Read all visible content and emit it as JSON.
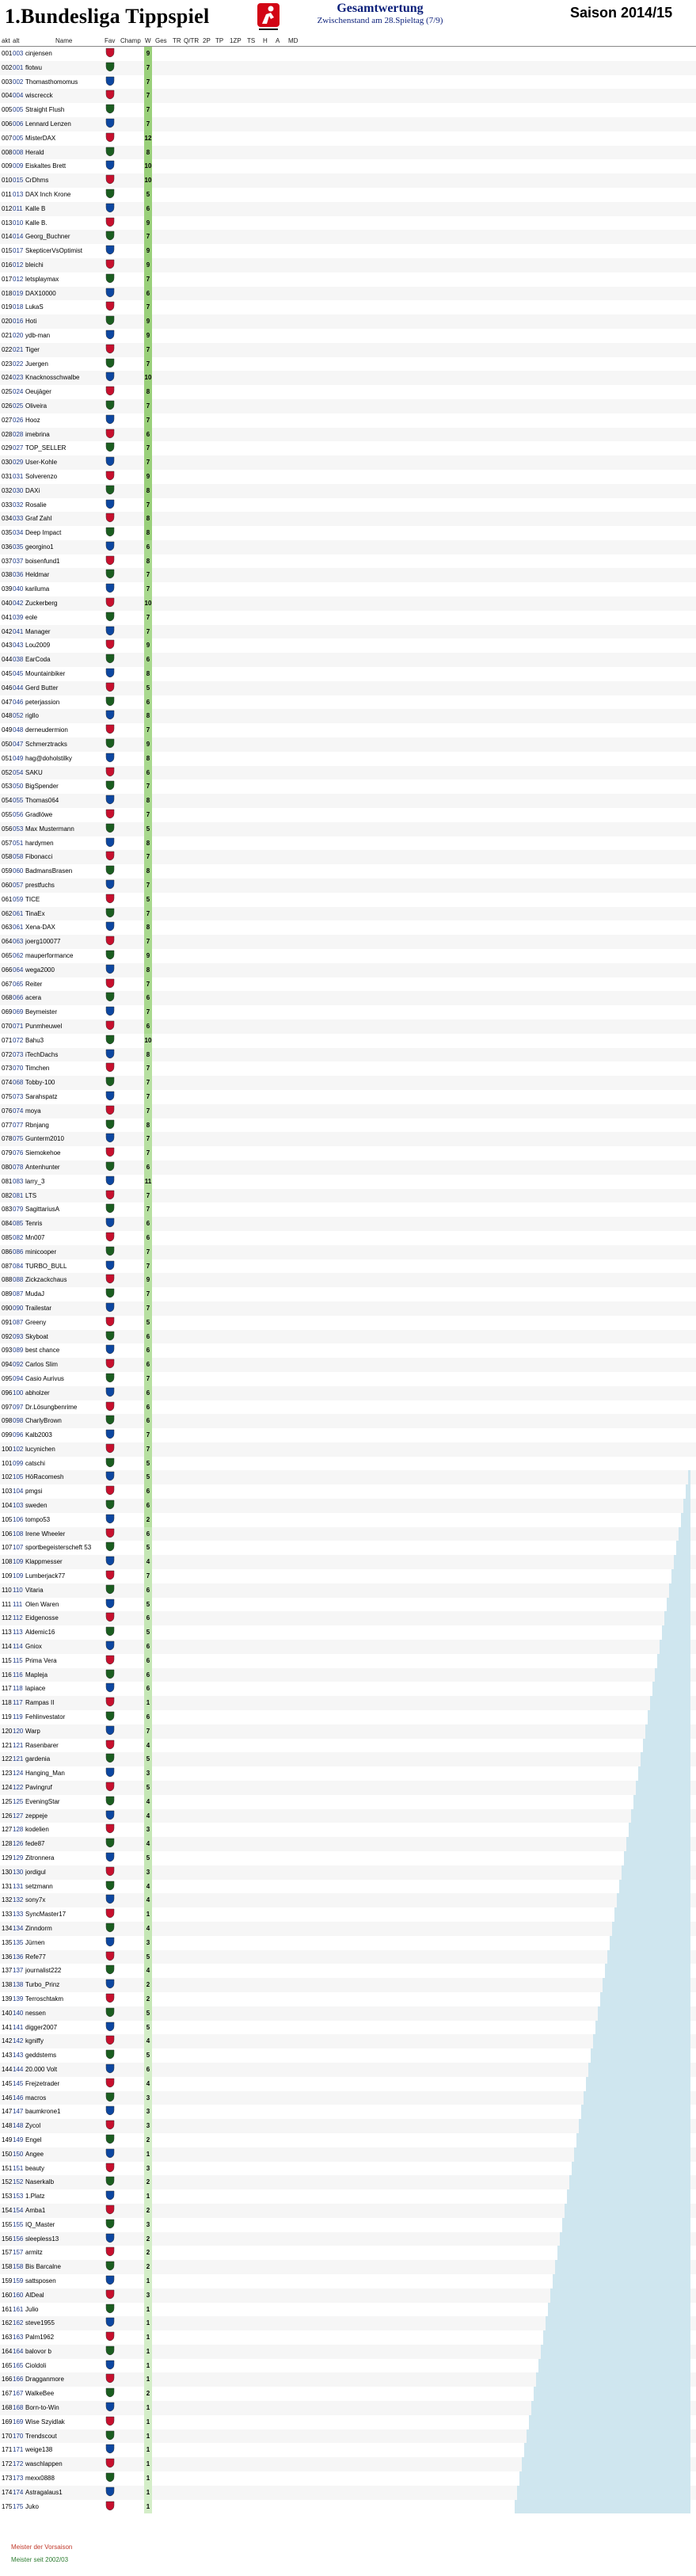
{
  "header": {
    "title": "1.Bundesliga Tippspiel",
    "subtitle": "Gesamtwertung",
    "info": "Zwischenstand am 28.Spieltag (7/9)",
    "season": "Saison 2014/15"
  },
  "columns": {
    "akt": "akt",
    "alt": "alt",
    "name": "Name",
    "fav": "Fav",
    "champ": "Champ",
    "w": "W",
    "ges": "Ges",
    "tr": "TR",
    "qtr": "Q/TR",
    "p2": "2P",
    "tp": "TP",
    "p1z": "1ZP",
    "ts": "TS",
    "h": "H",
    "a": "A",
    "md": "MD"
  },
  "rows": [
    {
      "akt": "001",
      "alt": "003",
      "name": "cinjensen",
      "w": "9"
    },
    {
      "akt": "002",
      "alt": "001",
      "name": "flotwu",
      "w": "7"
    },
    {
      "akt": "003",
      "alt": "002",
      "name": "Thomasthomomus",
      "w": "7"
    },
    {
      "akt": "004",
      "alt": "004",
      "name": "wiscrecck",
      "w": "7"
    },
    {
      "akt": "005",
      "alt": "005",
      "name": "Straight Flush",
      "w": "7"
    },
    {
      "akt": "006",
      "alt": "006",
      "name": "Lennard Lenzen",
      "w": "7"
    },
    {
      "akt": "007",
      "alt": "005",
      "name": "MisterDAX",
      "w": "12"
    },
    {
      "akt": "008",
      "alt": "008",
      "name": "Herald",
      "w": "8"
    },
    {
      "akt": "009",
      "alt": "009",
      "name": "Eiskaltes Brett",
      "w": "10"
    },
    {
      "akt": "010",
      "alt": "015",
      "name": "CrDhms",
      "w": "10"
    },
    {
      "akt": "011",
      "alt": "013",
      "name": "DAX Inch Krone",
      "w": "5"
    },
    {
      "akt": "012",
      "alt": "011",
      "name": "Kalle B",
      "w": "6"
    },
    {
      "akt": "013",
      "alt": "010",
      "name": "Kalle B.",
      "w": "9"
    },
    {
      "akt": "014",
      "alt": "014",
      "name": "Georg_Buchner",
      "w": "7"
    },
    {
      "akt": "015",
      "alt": "017",
      "name": "SkepticerVsOptimist",
      "w": "9"
    },
    {
      "akt": "016",
      "alt": "012",
      "name": "bleichi",
      "w": "9"
    },
    {
      "akt": "017",
      "alt": "012",
      "name": "letsplaymax",
      "w": "7"
    },
    {
      "akt": "018",
      "alt": "019",
      "name": "DAX10000",
      "w": "6"
    },
    {
      "akt": "019",
      "alt": "018",
      "name": "LukaS",
      "w": "7"
    },
    {
      "akt": "020",
      "alt": "016",
      "name": "Hoti",
      "w": "9"
    },
    {
      "akt": "021",
      "alt": "020",
      "name": "ydb-man",
      "w": "9"
    },
    {
      "akt": "022",
      "alt": "021",
      "name": "Tiger",
      "w": "7"
    },
    {
      "akt": "023",
      "alt": "022",
      "name": "Juergen",
      "w": "7"
    },
    {
      "akt": "024",
      "alt": "023",
      "name": "Knacknosschwalbe",
      "w": "10"
    },
    {
      "akt": "025",
      "alt": "024",
      "name": "Oeujäger",
      "w": "8"
    },
    {
      "akt": "026",
      "alt": "025",
      "name": "Oliveira",
      "w": "7"
    },
    {
      "akt": "027",
      "alt": "026",
      "name": "Hooz",
      "w": "7"
    },
    {
      "akt": "028",
      "alt": "028",
      "name": "imebrina",
      "w": "6"
    },
    {
      "akt": "029",
      "alt": "027",
      "name": "TOP_SELLER",
      "w": "7"
    },
    {
      "akt": "030",
      "alt": "029",
      "name": "User-Kohle",
      "w": "7"
    },
    {
      "akt": "031",
      "alt": "031",
      "name": "Solverenzo",
      "w": "9"
    },
    {
      "akt": "032",
      "alt": "030",
      "name": "DAXi",
      "w": "8"
    },
    {
      "akt": "033",
      "alt": "032",
      "name": "Rosalie",
      "w": "7"
    },
    {
      "akt": "034",
      "alt": "033",
      "name": "Graf Zahl",
      "w": "8"
    },
    {
      "akt": "035",
      "alt": "034",
      "name": "Deep Impact",
      "w": "8"
    },
    {
      "akt": "036",
      "alt": "035",
      "name": "georgino1",
      "w": "6"
    },
    {
      "akt": "037",
      "alt": "037",
      "name": "boisenfund1",
      "w": "8"
    },
    {
      "akt": "038",
      "alt": "036",
      "name": "Heldmar",
      "w": "7"
    },
    {
      "akt": "039",
      "alt": "040",
      "name": "kariluma",
      "w": "7"
    },
    {
      "akt": "040",
      "alt": "042",
      "name": "Zuckerberg",
      "w": "10"
    },
    {
      "akt": "041",
      "alt": "039",
      "name": "eole",
      "w": "7"
    },
    {
      "akt": "042",
      "alt": "041",
      "name": "Manager",
      "w": "7"
    },
    {
      "akt": "043",
      "alt": "043",
      "name": "Lou2009",
      "w": "9"
    },
    {
      "akt": "044",
      "alt": "038",
      "name": "EarCoda",
      "w": "6"
    },
    {
      "akt": "045",
      "alt": "045",
      "name": "Mountainbiker",
      "w": "8"
    },
    {
      "akt": "046",
      "alt": "044",
      "name": "Gerd Butter",
      "w": "5"
    },
    {
      "akt": "047",
      "alt": "046",
      "name": "peterjassion",
      "w": "6"
    },
    {
      "akt": "048",
      "alt": "052",
      "name": "rigllo",
      "w": "8"
    },
    {
      "akt": "049",
      "alt": "048",
      "name": "derneudermion",
      "w": "7"
    },
    {
      "akt": "050",
      "alt": "047",
      "name": "Schmerztracks",
      "w": "9"
    },
    {
      "akt": "051",
      "alt": "049",
      "name": "hag@doholstilky",
      "w": "8"
    },
    {
      "akt": "052",
      "alt": "054",
      "name": "SAKU",
      "w": "6"
    },
    {
      "akt": "053",
      "alt": "050",
      "name": "BigSpender",
      "w": "7"
    },
    {
      "akt": "054",
      "alt": "055",
      "name": "Thomas064",
      "w": "8"
    },
    {
      "akt": "055",
      "alt": "056",
      "name": "Gradlöwe",
      "w": "7"
    },
    {
      "akt": "056",
      "alt": "053",
      "name": "Max Mustermann",
      "w": "5"
    },
    {
      "akt": "057",
      "alt": "051",
      "name": "hardymen",
      "w": "8"
    },
    {
      "akt": "058",
      "alt": "058",
      "name": "Fibonacci",
      "w": "7"
    },
    {
      "akt": "059",
      "alt": "060",
      "name": "BadmansBrasen",
      "w": "8"
    },
    {
      "akt": "060",
      "alt": "057",
      "name": "prestfuchs",
      "w": "7"
    },
    {
      "akt": "061",
      "alt": "059",
      "name": "TICE",
      "w": "5"
    },
    {
      "akt": "062",
      "alt": "061",
      "name": "TinaEx",
      "w": "7"
    },
    {
      "akt": "063",
      "alt": "061",
      "name": "Xena-DAX",
      "w": "8"
    },
    {
      "akt": "064",
      "alt": "063",
      "name": "joerg100077",
      "w": "7"
    },
    {
      "akt": "065",
      "alt": "062",
      "name": "mauperformance",
      "w": "9"
    },
    {
      "akt": "066",
      "alt": "064",
      "name": "wega2000",
      "w": "8"
    },
    {
      "akt": "067",
      "alt": "065",
      "name": "Reiter",
      "w": "7"
    },
    {
      "akt": "068",
      "alt": "066",
      "name": "acera",
      "w": "6"
    },
    {
      "akt": "069",
      "alt": "069",
      "name": "Beymeister",
      "w": "7"
    },
    {
      "akt": "070",
      "alt": "071",
      "name": "Punmheuwel",
      "w": "6"
    },
    {
      "akt": "071",
      "alt": "072",
      "name": "Bahu3",
      "w": "10"
    },
    {
      "akt": "072",
      "alt": "073",
      "name": "iTechDachs",
      "w": "8"
    },
    {
      "akt": "073",
      "alt": "070",
      "name": "Timchen",
      "w": "7"
    },
    {
      "akt": "074",
      "alt": "068",
      "name": "Tobby-100",
      "w": "7"
    },
    {
      "akt": "075",
      "alt": "073",
      "name": "Sarahspatz",
      "w": "7"
    },
    {
      "akt": "076",
      "alt": "074",
      "name": "moya",
      "w": "7"
    },
    {
      "akt": "077",
      "alt": "077",
      "name": "Rbnjang",
      "w": "8"
    },
    {
      "akt": "078",
      "alt": "075",
      "name": "Gunterm2010",
      "w": "7"
    },
    {
      "akt": "079",
      "alt": "076",
      "name": "Siemokehoe",
      "w": "7"
    },
    {
      "akt": "080",
      "alt": "078",
      "name": "Antenhunter",
      "w": "6"
    },
    {
      "akt": "081",
      "alt": "083",
      "name": "larry_3",
      "w": "11"
    },
    {
      "akt": "082",
      "alt": "081",
      "name": "LTS",
      "w": "7"
    },
    {
      "akt": "083",
      "alt": "079",
      "name": "SagittariusA",
      "w": "7"
    },
    {
      "akt": "084",
      "alt": "085",
      "name": "Tenris",
      "w": "6"
    },
    {
      "akt": "085",
      "alt": "082",
      "name": "Mn007",
      "w": "6"
    },
    {
      "akt": "086",
      "alt": "086",
      "name": "minicooper",
      "w": "7"
    },
    {
      "akt": "087",
      "alt": "084",
      "name": "TURBO_BULL",
      "w": "7"
    },
    {
      "akt": "088",
      "alt": "088",
      "name": "Zickzackchaus",
      "w": "9"
    },
    {
      "akt": "089",
      "alt": "087",
      "name": "MudaJ",
      "w": "7"
    },
    {
      "akt": "090",
      "alt": "090",
      "name": "Trailestar",
      "w": "7"
    },
    {
      "akt": "091",
      "alt": "087",
      "name": "Greeny",
      "w": "5"
    },
    {
      "akt": "092",
      "alt": "093",
      "name": "Skyboat",
      "w": "6"
    },
    {
      "akt": "093",
      "alt": "089",
      "name": "best chance",
      "w": "6"
    },
    {
      "akt": "094",
      "alt": "092",
      "name": "Carlos Slim",
      "w": "6"
    },
    {
      "akt": "095",
      "alt": "094",
      "name": "Casio Aurivus",
      "w": "7"
    },
    {
      "akt": "096",
      "alt": "100",
      "name": "abholzer",
      "w": "6"
    },
    {
      "akt": "097",
      "alt": "097",
      "name": "Dr.Lösungbenrime",
      "w": "6"
    },
    {
      "akt": "098",
      "alt": "098",
      "name": "CharlyBrown",
      "w": "6"
    },
    {
      "akt": "099",
      "alt": "096",
      "name": "Kalb2003",
      "w": "7"
    },
    {
      "akt": "100",
      "alt": "102",
      "name": "lucynichen",
      "w": "7"
    },
    {
      "akt": "101",
      "alt": "099",
      "name": "catschi",
      "w": "5"
    },
    {
      "akt": "102",
      "alt": "105",
      "name": "HöRacomesh",
      "w": "5"
    },
    {
      "akt": "103",
      "alt": "104",
      "name": "pmgsi",
      "w": "6"
    },
    {
      "akt": "104",
      "alt": "103",
      "name": "sweden",
      "w": "6"
    },
    {
      "akt": "105",
      "alt": "106",
      "name": "tompo53",
      "w": "2"
    },
    {
      "akt": "106",
      "alt": "108",
      "name": "Irene Wheeler",
      "w": "6"
    },
    {
      "akt": "107",
      "alt": "107",
      "name": "sportbegeisterscheft 53",
      "w": "5"
    },
    {
      "akt": "108",
      "alt": "109",
      "name": "Klappmesser",
      "w": "4"
    },
    {
      "akt": "109",
      "alt": "109",
      "name": "Lumberjack77",
      "w": "7"
    },
    {
      "akt": "110",
      "alt": "110",
      "name": "Vitaria",
      "w": "6"
    },
    {
      "akt": "111",
      "alt": "111",
      "name": "Olen Waren",
      "w": "5"
    },
    {
      "akt": "112",
      "alt": "112",
      "name": "Eidgenosse",
      "w": "6"
    },
    {
      "akt": "113",
      "alt": "113",
      "name": "Aldemic16",
      "w": "5"
    },
    {
      "akt": "114",
      "alt": "114",
      "name": "Gniox",
      "w": "6"
    },
    {
      "akt": "115",
      "alt": "115",
      "name": "Prima Vera",
      "w": "6"
    },
    {
      "akt": "116",
      "alt": "116",
      "name": "Mapleja",
      "w": "6"
    },
    {
      "akt": "117",
      "alt": "118",
      "name": "lapiace",
      "w": "6"
    },
    {
      "akt": "118",
      "alt": "117",
      "name": "Rampas II",
      "w": "1"
    },
    {
      "akt": "119",
      "alt": "119",
      "name": "Fehlinvestator",
      "w": "6"
    },
    {
      "akt": "120",
      "alt": "120",
      "name": "Warp",
      "w": "7"
    },
    {
      "akt": "121",
      "alt": "121",
      "name": "Rasenbarer",
      "w": "4"
    },
    {
      "akt": "122",
      "alt": "121",
      "name": "gardenia",
      "w": "5"
    },
    {
      "akt": "123",
      "alt": "124",
      "name": "Hanging_Man",
      "w": "3"
    },
    {
      "akt": "124",
      "alt": "122",
      "name": "Pavingruf",
      "w": "5"
    },
    {
      "akt": "125",
      "alt": "125",
      "name": "EveningStar",
      "w": "4"
    },
    {
      "akt": "126",
      "alt": "127",
      "name": "zeppeje",
      "w": "4"
    },
    {
      "akt": "127",
      "alt": "128",
      "name": "kodelien",
      "w": "3"
    },
    {
      "akt": "128",
      "alt": "126",
      "name": "fede87",
      "w": "4"
    },
    {
      "akt": "129",
      "alt": "129",
      "name": "Zitronnera",
      "w": "5"
    },
    {
      "akt": "130",
      "alt": "130",
      "name": "jordigul",
      "w": "3"
    },
    {
      "akt": "131",
      "alt": "131",
      "name": "setzmann",
      "w": "4"
    },
    {
      "akt": "132",
      "alt": "132",
      "name": "sony7x",
      "w": "4"
    },
    {
      "akt": "133",
      "alt": "133",
      "name": "SyncMaster17",
      "w": "1"
    },
    {
      "akt": "134",
      "alt": "134",
      "name": "Zinndorm",
      "w": "4"
    },
    {
      "akt": "135",
      "alt": "135",
      "name": "Jürnen",
      "w": "3"
    },
    {
      "akt": "136",
      "alt": "136",
      "name": "Refe77",
      "w": "5"
    },
    {
      "akt": "137",
      "alt": "137",
      "name": "journalist222",
      "w": "4"
    },
    {
      "akt": "138",
      "alt": "138",
      "name": "Turbo_Prinz",
      "w": "2"
    },
    {
      "akt": "139",
      "alt": "139",
      "name": "Terroschtakm",
      "w": "2"
    },
    {
      "akt": "140",
      "alt": "140",
      "name": "nessen",
      "w": "5"
    },
    {
      "akt": "141",
      "alt": "141",
      "name": "digger2007",
      "w": "5"
    },
    {
      "akt": "142",
      "alt": "142",
      "name": "kgniffy",
      "w": "4"
    },
    {
      "akt": "143",
      "alt": "143",
      "name": "geddstems",
      "w": "5"
    },
    {
      "akt": "144",
      "alt": "144",
      "name": "20.000 Volt",
      "w": "6"
    },
    {
      "akt": "145",
      "alt": "145",
      "name": "Frejzetrader",
      "w": "4"
    },
    {
      "akt": "146",
      "alt": "146",
      "name": "macros",
      "w": "3"
    },
    {
      "akt": "147",
      "alt": "147",
      "name": "baumkrone1",
      "w": "3"
    },
    {
      "akt": "148",
      "alt": "148",
      "name": "Zycol",
      "w": "3"
    },
    {
      "akt": "149",
      "alt": "149",
      "name": "Engel",
      "w": "2"
    },
    {
      "akt": "150",
      "alt": "150",
      "name": "Angee",
      "w": "1"
    },
    {
      "akt": "151",
      "alt": "151",
      "name": "beauty",
      "w": "3"
    },
    {
      "akt": "152",
      "alt": "152",
      "name": "Naserkalb",
      "w": "2"
    },
    {
      "akt": "153",
      "alt": "153",
      "name": "1.Platz",
      "w": "1"
    },
    {
      "akt": "154",
      "alt": "154",
      "name": "Amba1",
      "w": "2"
    },
    {
      "akt": "155",
      "alt": "155",
      "name": "IQ_Master",
      "w": "3"
    },
    {
      "akt": "156",
      "alt": "156",
      "name": "sleepless13",
      "w": "2"
    },
    {
      "akt": "157",
      "alt": "157",
      "name": "armitz",
      "w": "2"
    },
    {
      "akt": "158",
      "alt": "158",
      "name": "Bis Barcalne",
      "w": "2"
    },
    {
      "akt": "159",
      "alt": "159",
      "name": "sattsposen",
      "w": "1"
    },
    {
      "akt": "160",
      "alt": "160",
      "name": "AlDeal",
      "w": "3"
    },
    {
      "akt": "161",
      "alt": "161",
      "name": "Julio",
      "w": "1"
    },
    {
      "akt": "162",
      "alt": "162",
      "name": "steve1955",
      "w": "1"
    },
    {
      "akt": "163",
      "alt": "163",
      "name": "Palm1962",
      "w": "1"
    },
    {
      "akt": "164",
      "alt": "164",
      "name": "balovor b",
      "w": "1"
    },
    {
      "akt": "165",
      "alt": "165",
      "name": "Cioldoli",
      "w": "1"
    },
    {
      "akt": "166",
      "alt": "166",
      "name": "Dragganmore",
      "w": "1"
    },
    {
      "akt": "167",
      "alt": "167",
      "name": "WalkeBee",
      "w": "2"
    },
    {
      "akt": "168",
      "alt": "168",
      "name": "Born-to-Win",
      "w": "1"
    },
    {
      "akt": "169",
      "alt": "169",
      "name": "Wise Szyidlak",
      "w": "1"
    },
    {
      "akt": "170",
      "alt": "170",
      "name": "Trendscout",
      "w": "1"
    },
    {
      "akt": "171",
      "alt": "171",
      "name": "weige138",
      "w": "1"
    },
    {
      "akt": "172",
      "alt": "172",
      "name": "waschlappen",
      "w": "1"
    },
    {
      "akt": "173",
      "alt": "173",
      "name": "mexx0888",
      "w": "1"
    },
    {
      "akt": "174",
      "alt": "174",
      "name": "Astragalaus1",
      "w": "1"
    },
    {
      "akt": "175",
      "alt": "175",
      "name": "Juko",
      "w": "1"
    }
  ],
  "footer": {
    "line1": "Meister der Vorsaison",
    "line2": "Meister seit 2002/03"
  }
}
